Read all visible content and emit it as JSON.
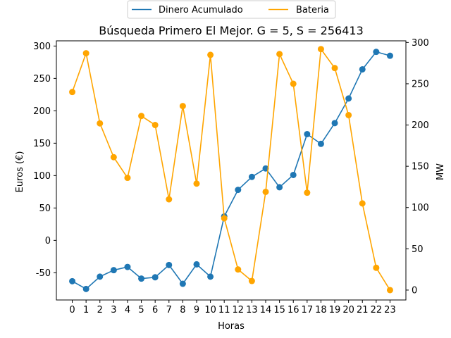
{
  "chart_data": {
    "type": "line",
    "title": "Búsqueda Primero El Mejor. G = 5, S = 256413",
    "xlabel": "Horas",
    "ylabel": "Euros (€)",
    "ylabel_right": "MW",
    "x": [
      0,
      1,
      2,
      3,
      4,
      5,
      6,
      7,
      8,
      9,
      10,
      11,
      12,
      13,
      14,
      15,
      16,
      17,
      18,
      19,
      20,
      21,
      22,
      23
    ],
    "xlim": [
      -1.15,
      24.15
    ],
    "ylim": [
      -92,
      308
    ],
    "ylim_right": [
      -12,
      302
    ],
    "yticks": [
      -50,
      0,
      50,
      100,
      150,
      200,
      250,
      300
    ],
    "yticks_right": [
      0,
      50,
      100,
      150,
      200,
      250,
      300
    ],
    "grid": false,
    "legend_position": "top-center",
    "series": [
      {
        "name": "Dinero Acumulado",
        "axis": "left",
        "color": "#1f77b4",
        "values": [
          -63,
          -75,
          -56,
          -46,
          -41,
          -59,
          -57,
          -38,
          -67,
          -37,
          -56,
          37,
          78,
          98,
          111,
          82,
          101,
          164,
          149,
          181,
          219,
          264,
          291,
          285
        ]
      },
      {
        "name": "Bateria",
        "axis": "right",
        "color": "#ffa500",
        "values": [
          240,
          287,
          202,
          161,
          136,
          211,
          200,
          110,
          223,
          129,
          285,
          87,
          25,
          11,
          119,
          286,
          250,
          118,
          292,
          269,
          212,
          105,
          27,
          0
        ]
      }
    ]
  }
}
